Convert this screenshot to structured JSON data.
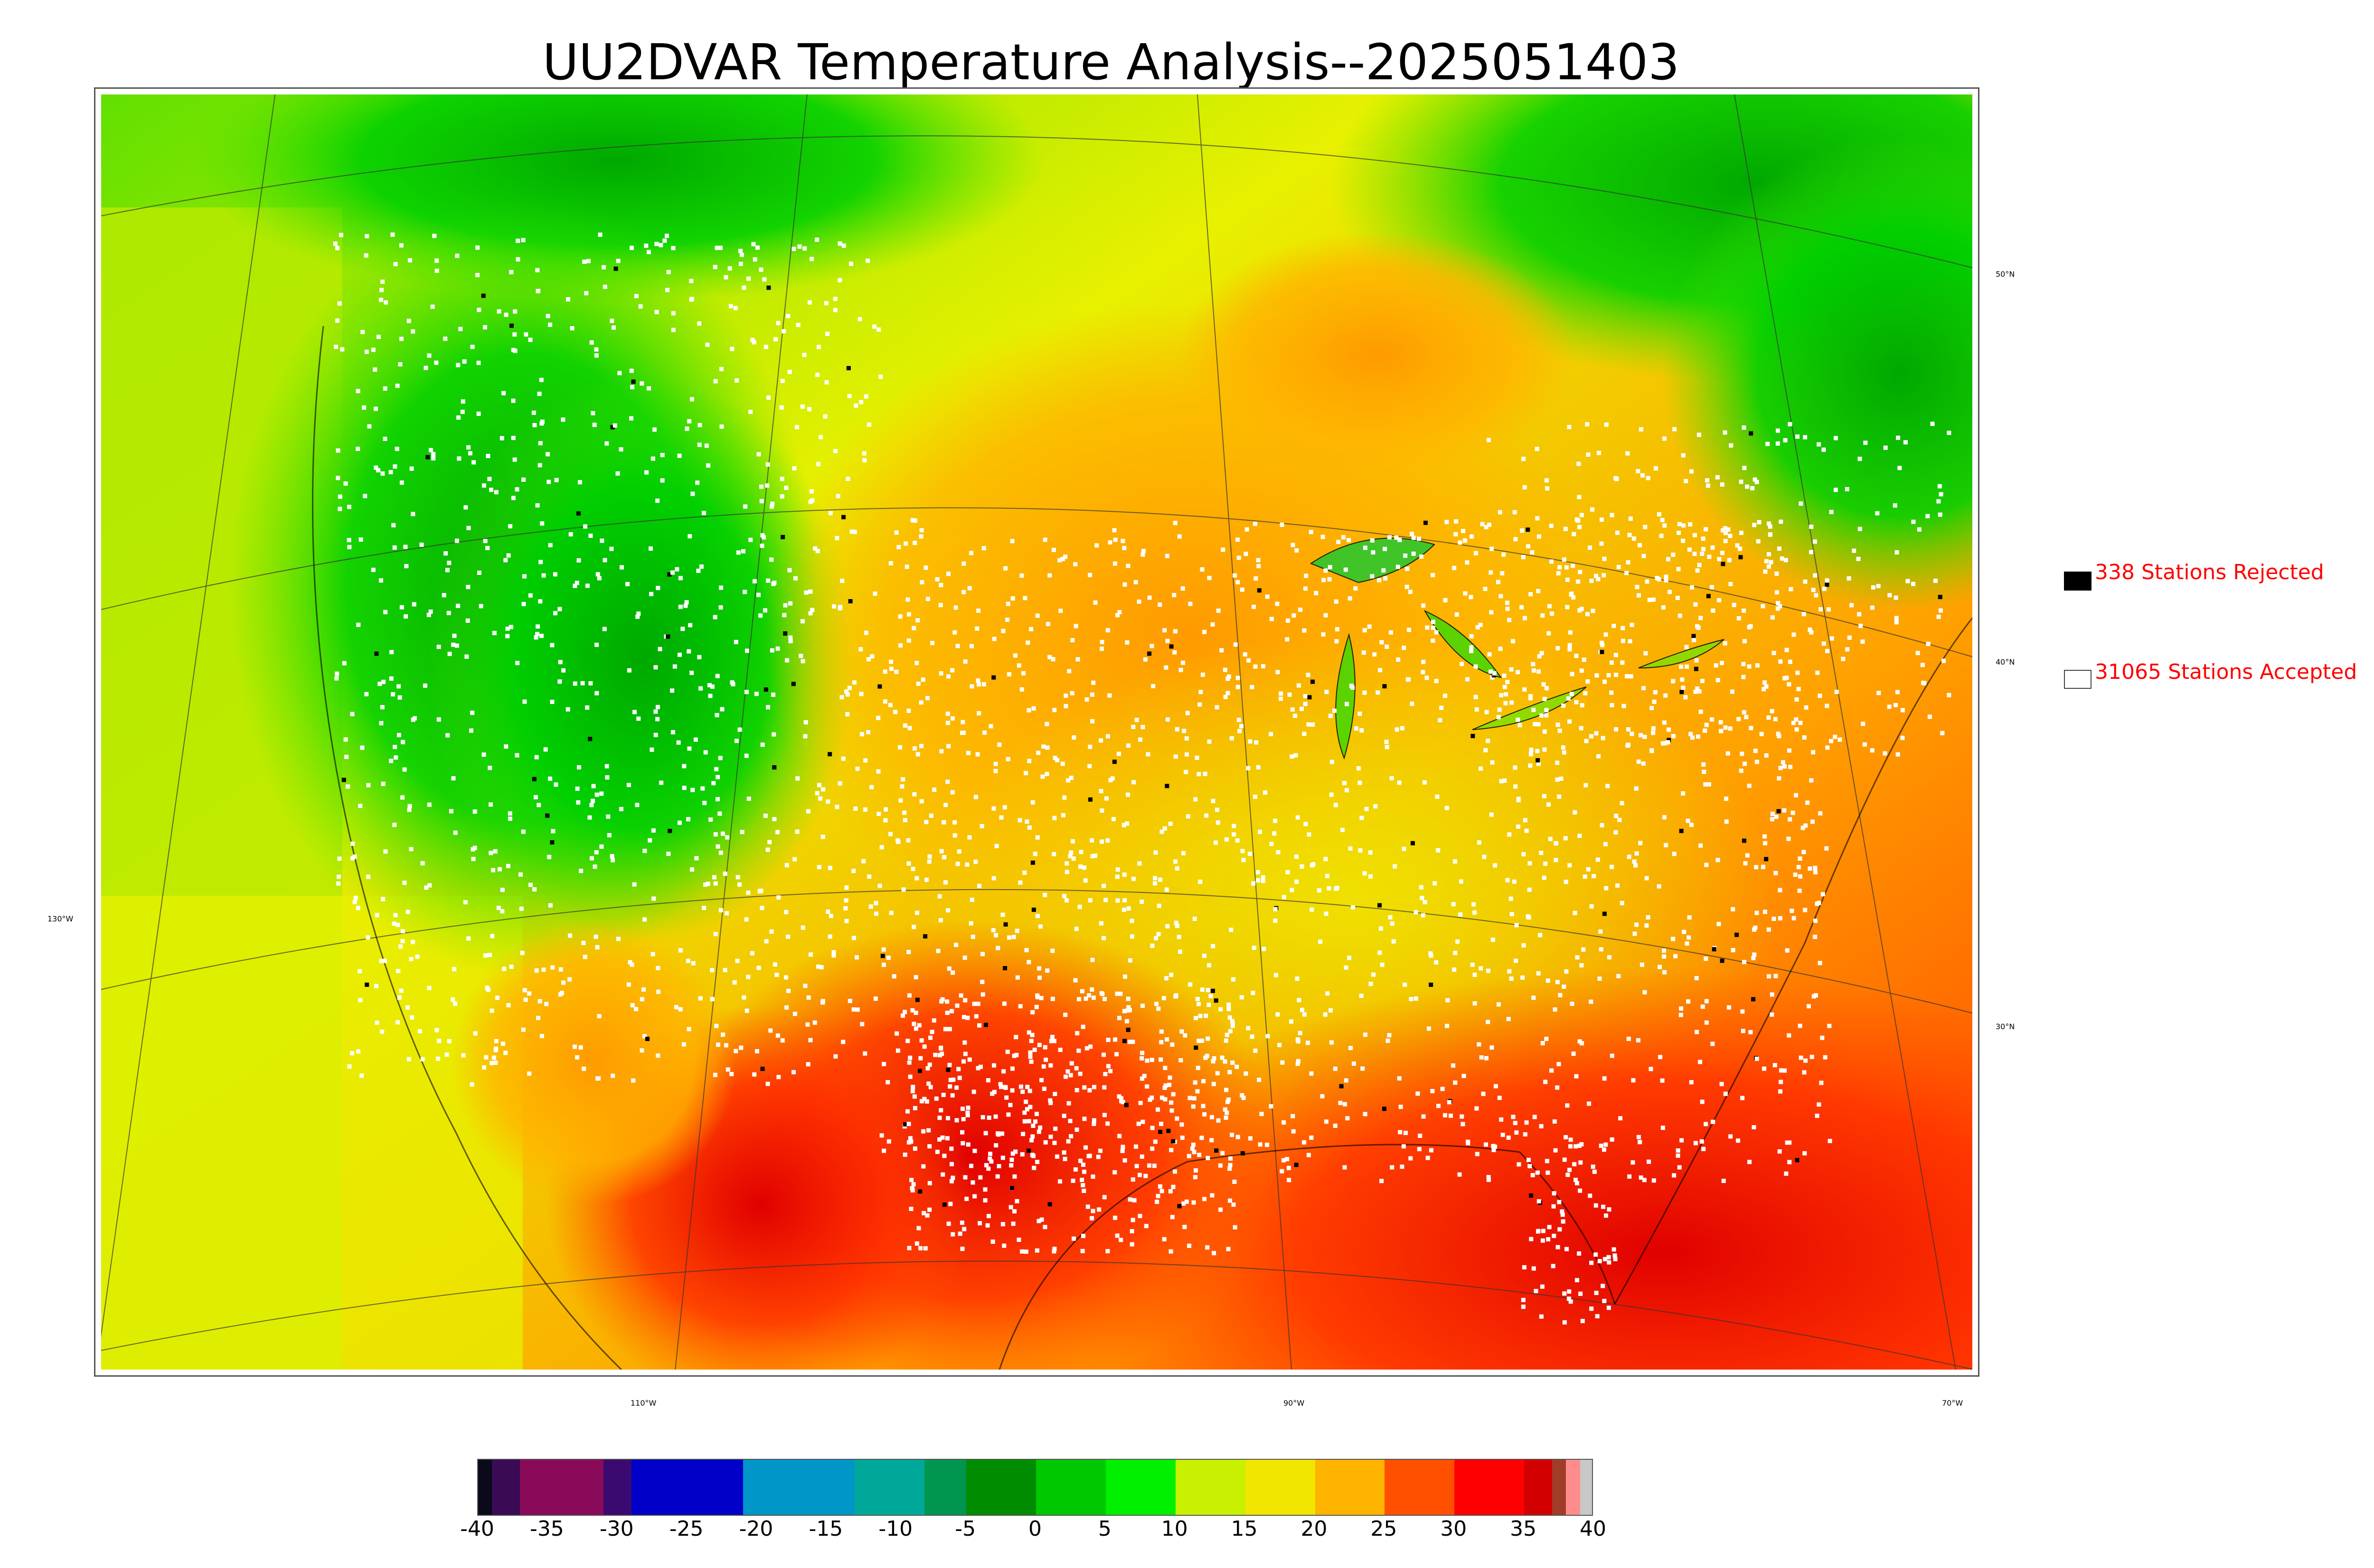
{
  "title": "UU2DVAR Temperature Analysis--2025051403",
  "legend": {
    "rejected": {
      "label": "338 Stations Rejected",
      "color": "#000000"
    },
    "accepted": {
      "label": "31065 Stations Accepted",
      "color": "#ffffff"
    },
    "text_color": "#ff0000"
  },
  "graticule_labels": {
    "latitudes": [
      "50°N",
      "40°N",
      "30°N"
    ],
    "longitudes": [
      "130°W",
      "110°W",
      "90°W",
      "70°W"
    ]
  },
  "colorbar": {
    "ticks": [
      "-40",
      "-35",
      "-30",
      "-25",
      "-20",
      "-15",
      "-10",
      "-5",
      "0",
      "5",
      "10",
      "15",
      "20",
      "25",
      "30",
      "35",
      "40"
    ],
    "range": [
      -40,
      40
    ],
    "colors": [
      {
        "from": -40,
        "to": -39,
        "color": "#0a0a1a"
      },
      {
        "from": -39,
        "to": -37,
        "color": "#3a0a55"
      },
      {
        "from": -37,
        "to": -31,
        "color": "#8a0a5a"
      },
      {
        "from": -31,
        "to": -29,
        "color": "#3a0a70"
      },
      {
        "from": -29,
        "to": -21,
        "color": "#0000c8"
      },
      {
        "from": -21,
        "to": -13,
        "color": "#0096c8"
      },
      {
        "from": -13,
        "to": -8,
        "color": "#00a89a"
      },
      {
        "from": -8,
        "to": -5,
        "color": "#009650"
      },
      {
        "from": -5,
        "to": 0,
        "color": "#008c00"
      },
      {
        "from": 0,
        "to": 5,
        "color": "#00c800"
      },
      {
        "from": 5,
        "to": 10,
        "color": "#00f000"
      },
      {
        "from": 10,
        "to": 15,
        "color": "#c8f000"
      },
      {
        "from": 15,
        "to": 20,
        "color": "#f0e600"
      },
      {
        "from": 20,
        "to": 25,
        "color": "#ffb400"
      },
      {
        "from": 25,
        "to": 30,
        "color": "#ff5000"
      },
      {
        "from": 30,
        "to": 35,
        "color": "#ff0000"
      },
      {
        "from": 35,
        "to": 37,
        "color": "#d20000"
      },
      {
        "from": 37,
        "to": 38,
        "color": "#a03c28"
      },
      {
        "from": 38,
        "to": 39,
        "color": "#ff8c8c"
      },
      {
        "from": 39,
        "to": 40,
        "color": "#c8c8c8"
      }
    ]
  },
  "map_colors": {
    "ocean_north_pacific": "#a8e000",
    "ocean_south": "#ff5000",
    "cold": "#00c800",
    "mild": "#f0e600",
    "warm": "#ffb400",
    "hot": "#ff2000",
    "station_accepted": "#ffffff",
    "station_rejected": "#000000"
  }
}
